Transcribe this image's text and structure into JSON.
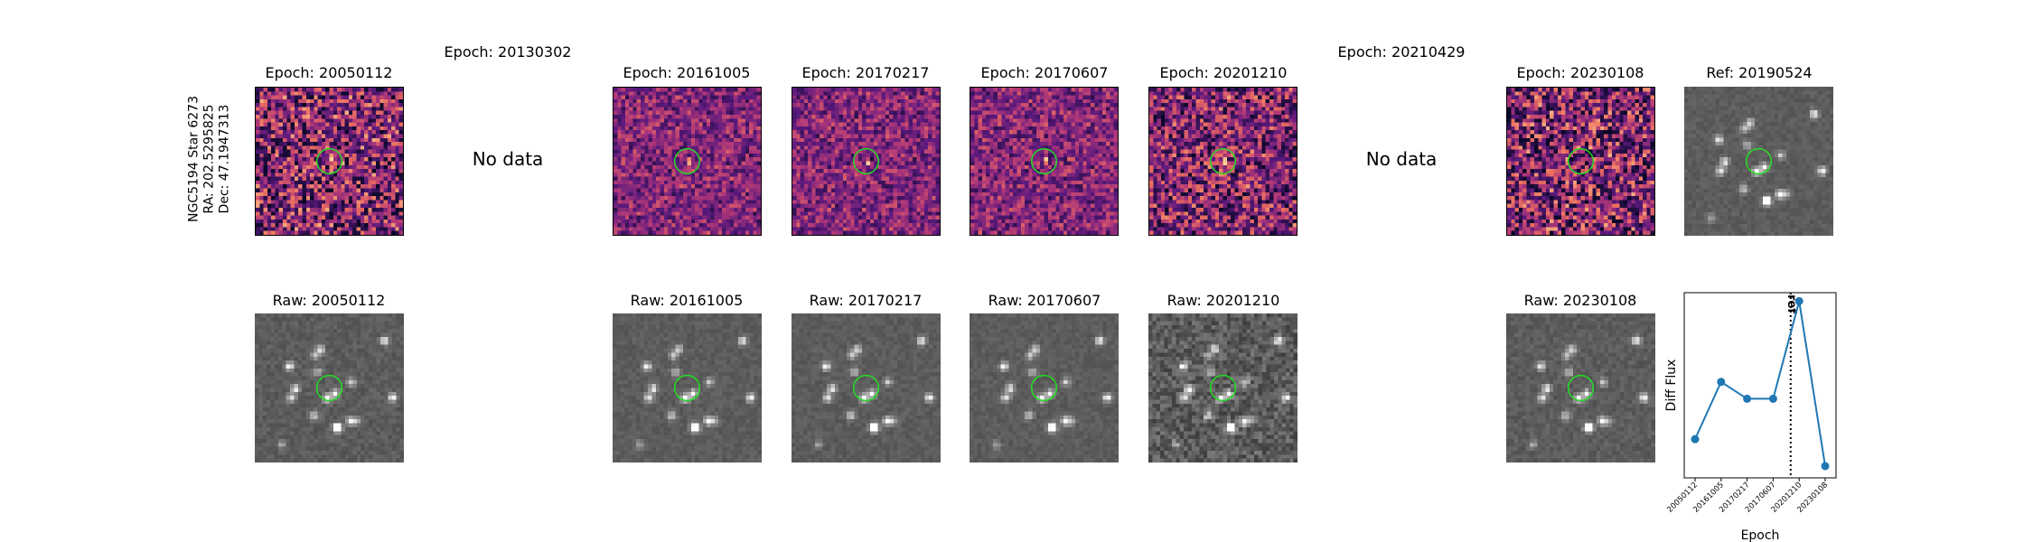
{
  "target_label": [
    "NGC5194 Star 6273",
    "RA: 202.5295825",
    "Dec: 47.1947313"
  ],
  "nodata_text": "No data",
  "diff_panels": [
    {
      "title": "Epoch: 20050112",
      "has_data": true,
      "seed": 11,
      "noise": 0.55
    },
    {
      "title": "Epoch: 20130302",
      "has_data": false
    },
    {
      "title": "Epoch: 20161005",
      "has_data": true,
      "seed": 23,
      "noise": 0.3
    },
    {
      "title": "Epoch: 20170217",
      "has_data": true,
      "seed": 37,
      "noise": 0.3
    },
    {
      "title": "Epoch: 20170607",
      "has_data": true,
      "seed": 41,
      "noise": 0.3
    },
    {
      "title": "Epoch: 20201210",
      "has_data": true,
      "seed": 53,
      "noise": 0.5
    },
    {
      "title": "Epoch: 20210429",
      "has_data": false
    },
    {
      "title": "Epoch: 20230108",
      "has_data": true,
      "seed": 67,
      "noise": 0.55
    }
  ],
  "raw_panels": [
    {
      "title": "Raw: 20050112",
      "has_data": true,
      "seed": 101,
      "noise": 0.05
    },
    {
      "title": "",
      "has_data": false
    },
    {
      "title": "Raw: 20161005",
      "has_data": true,
      "seed": 102,
      "noise": 0.04
    },
    {
      "title": "Raw: 20170217",
      "has_data": true,
      "seed": 103,
      "noise": 0.04
    },
    {
      "title": "Raw: 20170607",
      "has_data": true,
      "seed": 104,
      "noise": 0.04
    },
    {
      "title": "Raw: 20201210",
      "has_data": true,
      "seed": 105,
      "noise": 0.12
    },
    {
      "title": "",
      "has_data": false
    },
    {
      "title": "Raw: 20230108",
      "has_data": true,
      "seed": 106,
      "noise": 0.05
    }
  ],
  "ref_panel": {
    "title": "Ref: 20190524",
    "seed": 107
  },
  "colors": {
    "circle": "#22dd22",
    "line": "#1f77b4",
    "marker": "#1f77b4"
  },
  "chart_data": {
    "type": "line",
    "xlabel": "Epoch",
    "ylabel": "Diff Flux",
    "categories": [
      "20050112",
      "20161005",
      "20170217",
      "20170607",
      "20201210",
      "20230108"
    ],
    "values": [
      0.18,
      0.52,
      0.42,
      0.42,
      1.0,
      0.02
    ],
    "ylim": [
      -0.05,
      1.05
    ],
    "ref_line": {
      "label": "ref",
      "position_between": [
        "20170607",
        "20201210"
      ],
      "style": "dotted"
    },
    "grid": false,
    "legend": "none"
  }
}
